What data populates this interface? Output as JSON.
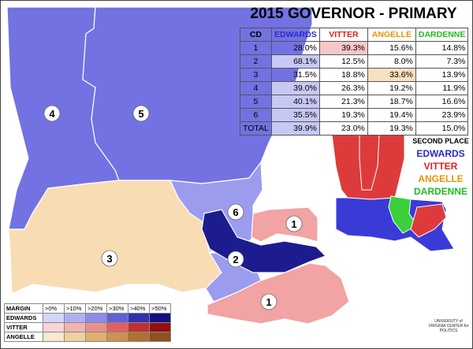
{
  "title": "2015 GOVERNOR - PRIMARY",
  "table": {
    "header": [
      "CD",
      "EDWARDS",
      "VITTER",
      "ANGELLE",
      "DARDENNE"
    ],
    "rows": [
      [
        "1",
        "28.0%",
        "39.3%",
        "15.6%",
        "14.8%"
      ],
      [
        "2",
        "68.1%",
        "12.5%",
        "8.0%",
        "7.3%"
      ],
      [
        "3",
        "31.5%",
        "18.8%",
        "33.6%",
        "13.9%"
      ],
      [
        "4",
        "39.0%",
        "26.3%",
        "19.2%",
        "11.9%"
      ],
      [
        "5",
        "40.1%",
        "21.3%",
        "18.7%",
        "16.6%"
      ],
      [
        "6",
        "35.5%",
        "19.3%",
        "19.4%",
        "23.9%"
      ],
      [
        "TOTAL",
        "39.9%",
        "23.0%",
        "19.3%",
        "15.0%"
      ]
    ]
  },
  "second_place": {
    "title": "SECOND PLACE",
    "items": [
      "EDWARDS",
      "VITTER",
      "ANGELLE",
      "DARDENNE"
    ]
  },
  "map_labels": [
    "4",
    "5",
    "6",
    "1",
    "3",
    "2",
    "1"
  ],
  "legend": {
    "header": [
      "MARGIN",
      ">0%",
      ">10%",
      ">20%",
      ">30%",
      ">40%",
      ">50%"
    ],
    "rows": [
      "EDWARDS",
      "VITTER",
      "ANGELLE"
    ]
  },
  "logo": "UNIVERSITY of VIRGINIA CENTER for POLITICS"
}
